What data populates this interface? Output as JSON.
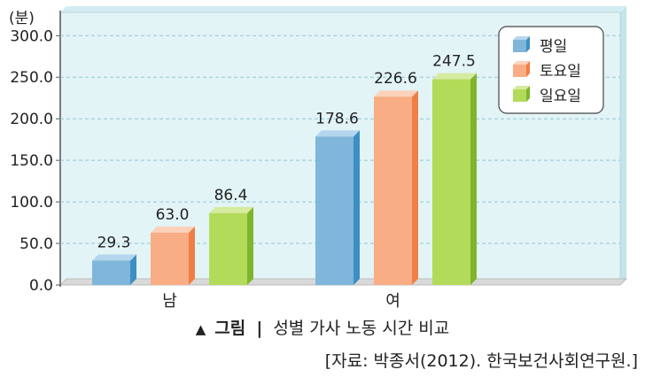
{
  "chart_data": {
    "type": "bar",
    "unit_label": "(분)",
    "categories": [
      "남",
      "여"
    ],
    "series": [
      {
        "name": "평일",
        "values": [
          29.3,
          178.6
        ],
        "color": "#7fb6da",
        "side": "#3c8fc4",
        "top": "#b3d6ee"
      },
      {
        "name": "토요일",
        "values": [
          63.0,
          226.6
        ],
        "color": "#f8ad84",
        "side": "#ef7f45",
        "top": "#fcd2bb"
      },
      {
        "name": "일요일",
        "values": [
          86.4,
          247.5
        ],
        "color": "#b3db5a",
        "side": "#7fb52d",
        "top": "#d5eb9f"
      }
    ],
    "value_labels": [
      [
        "29.3",
        "178.6"
      ],
      [
        "63.0",
        "226.6"
      ],
      [
        "86.4",
        "247.5"
      ]
    ],
    "y_ticks": [
      "0.0",
      "50.0",
      "100.0",
      "150.0",
      "200.0",
      "250.0",
      "300.0"
    ],
    "ylim": [
      0,
      300
    ],
    "grid": true,
    "legend_position": "top-right",
    "plot_background": "#e3f4f7"
  },
  "caption": {
    "marker": "▲",
    "prefix": "그림",
    "divider": "|",
    "title": "성별 가사 노동 시간 비교"
  },
  "source": "[자료: 박종서(2012). 한국보건사회연구원.]"
}
